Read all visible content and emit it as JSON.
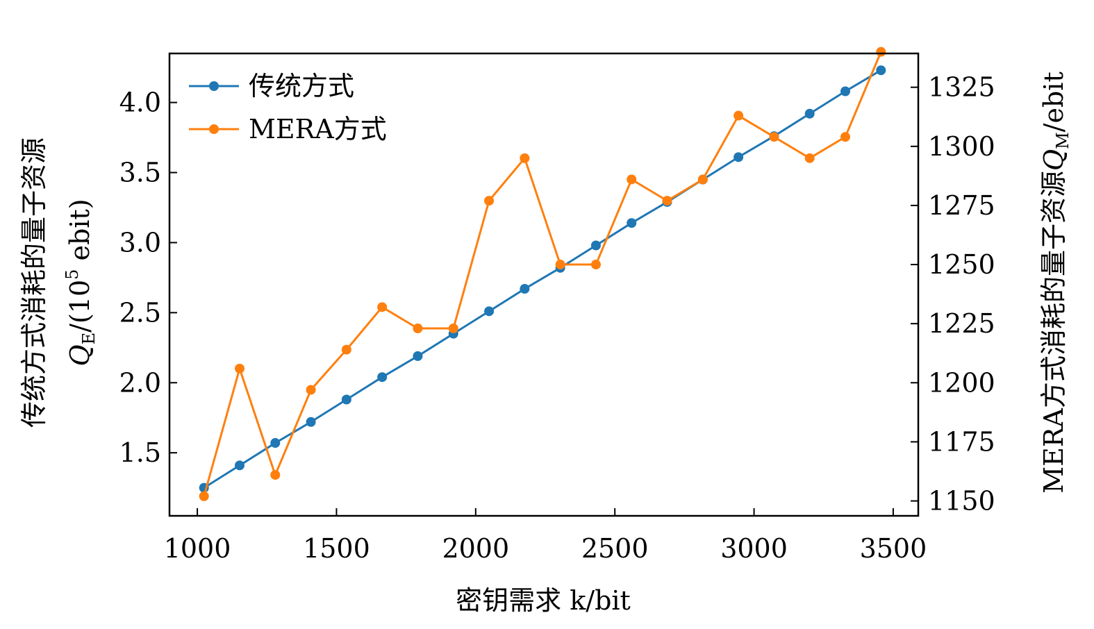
{
  "chart_data": {
    "type": "line",
    "title": "",
    "xlabel": "密钥需求 k/bit",
    "ylabel_left_main": "传统方式消耗的量子资源",
    "ylabel_left_symbol": "Q",
    "ylabel_left_subscript": "E",
    "ylabel_left_unit": "/(10",
    "ylabel_left_exponent": "5",
    "ylabel_left_unit_end": " ebit)",
    "ylabel_right_main": "MERA方式消耗的量子资源",
    "ylabel_right_symbol": "Q",
    "ylabel_right_subscript": "M",
    "ylabel_right_unit": "/ebit",
    "xlim": [
      900,
      3590
    ],
    "ylim_left": [
      1.05,
      4.35
    ],
    "ylim_right": [
      1143.7,
      1339.3
    ],
    "xticks": [
      1000,
      1500,
      2000,
      2500,
      3000,
      3500
    ],
    "yticks_left": [
      1.5,
      2.0,
      2.5,
      3.0,
      3.5,
      4.0
    ],
    "ytick_labels_left": [
      "1.5",
      "2.0",
      "2.5",
      "3.0",
      "3.5",
      "4.0"
    ],
    "yticks_right": [
      1150,
      1175,
      1200,
      1225,
      1250,
      1275,
      1300,
      1325
    ],
    "x": [
      1024,
      1152,
      1280,
      1408,
      1536,
      1664,
      1792,
      1920,
      2048,
      2176,
      2304,
      2432,
      2560,
      2688,
      2816,
      2944,
      3072,
      3200,
      3328,
      3456
    ],
    "legend_position": "top-left",
    "series": [
      {
        "name": "传统方式",
        "axis": "left",
        "color": "#1f77b4",
        "values": [
          1.25,
          1.41,
          1.57,
          1.72,
          1.88,
          2.04,
          2.19,
          2.35,
          2.51,
          2.67,
          2.82,
          2.98,
          3.14,
          3.29,
          3.45,
          3.61,
          3.76,
          3.92,
          4.08,
          4.23
        ]
      },
      {
        "name": "MERA方式",
        "axis": "right",
        "color": "#ff7f0e",
        "values": [
          1152,
          1206,
          1161,
          1197,
          1214,
          1232,
          1223,
          1223,
          1277,
          1295,
          1250,
          1250,
          1286,
          1277,
          1286,
          1313,
          1304,
          1295,
          1304,
          1340
        ]
      }
    ]
  }
}
